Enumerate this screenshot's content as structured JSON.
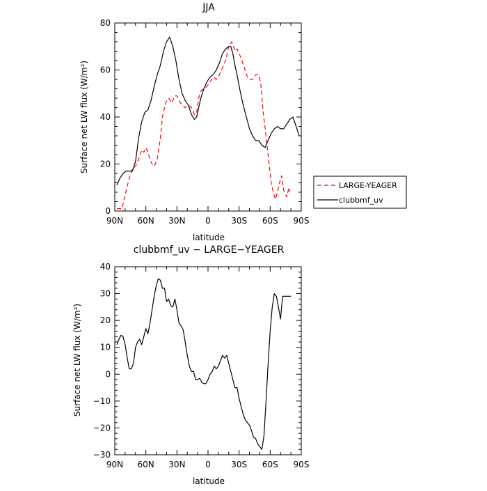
{
  "chart_data": [
    {
      "type": "line",
      "title": "JJA",
      "xlabel": "latitude",
      "ylabel": "Surface net LW flux (W/m²)",
      "xlim": [
        90,
        -90
      ],
      "ylim": [
        0,
        80
      ],
      "xticks": [
        90,
        60,
        30,
        0,
        -30,
        -60,
        -90
      ],
      "xticklabels": [
        "90N",
        "60N",
        "30N",
        "0",
        "30S",
        "60S",
        "90S"
      ],
      "yticks": [
        0,
        20,
        40,
        60,
        80
      ],
      "yticklabels": [
        "0",
        "20",
        "40",
        "60",
        "80"
      ],
      "legend": {
        "placement": "right-outside",
        "entries": [
          "LARGE-YEAGER",
          "clubbmf_uv"
        ]
      },
      "series": [
        {
          "name": "LARGE-YEAGER",
          "color": "#ff0000",
          "dash": "dashed",
          "x": [
            88,
            83,
            80,
            76,
            73,
            70,
            67,
            64,
            62,
            60,
            58,
            56,
            54,
            52,
            49,
            46,
            44,
            41,
            38,
            35,
            32,
            30,
            28,
            25,
            22,
            19,
            16,
            13,
            11,
            9,
            7,
            4,
            1,
            -2,
            -5,
            -8,
            -11,
            -14,
            -17,
            -20,
            -23,
            -26,
            -28,
            -30,
            -32,
            -35,
            -38,
            -40,
            -43,
            -46,
            -49,
            -51,
            -53,
            -56,
            -59,
            -61,
            -63,
            -65,
            -67,
            -69,
            -71,
            -73,
            -76,
            -78,
            -79
          ],
          "y": [
            1,
            1,
            7,
            14,
            18,
            19,
            22,
            26,
            25,
            27,
            25,
            22,
            20,
            19,
            22,
            31,
            40,
            46,
            48,
            46,
            49,
            49,
            47,
            45,
            44,
            45,
            44,
            41,
            42,
            48,
            51,
            52,
            53,
            55,
            57,
            56,
            58,
            61,
            64,
            70,
            72,
            68,
            69,
            67,
            65,
            61,
            57,
            56,
            56,
            58,
            58,
            54,
            43,
            32,
            20,
            12,
            8,
            5,
            8,
            12,
            15,
            9,
            6,
            10,
            8
          ]
        },
        {
          "name": "clubbmf_uv",
          "color": "#000000",
          "dash": "solid",
          "x": [
            88,
            85,
            82,
            79,
            76,
            73,
            70,
            67,
            64,
            61,
            58,
            55,
            52,
            49,
            46,
            43,
            40,
            37,
            34,
            31,
            28,
            25,
            22,
            19,
            16,
            13,
            11,
            9,
            7,
            4,
            1,
            -2,
            -5,
            -8,
            -11,
            -14,
            -17,
            -20,
            -22,
            -24,
            -26,
            -28,
            -31,
            -34,
            -37,
            -40,
            -43,
            -46,
            -49,
            -52,
            -55,
            -58,
            -61,
            -64,
            -67,
            -70,
            -73,
            -76,
            -79,
            -82,
            -85,
            -88
          ],
          "y": [
            11,
            14,
            16,
            17,
            17,
            17,
            21,
            31,
            38,
            42,
            43,
            47,
            53,
            58,
            62,
            68,
            72,
            74,
            70,
            64,
            56,
            50,
            47,
            45,
            41,
            39,
            40,
            44,
            48,
            52,
            55,
            57,
            58,
            60,
            63,
            67,
            69,
            70,
            70,
            67,
            62,
            58,
            51,
            45,
            40,
            35,
            32,
            30,
            30,
            28,
            27,
            30,
            33,
            35,
            36,
            35,
            35,
            37,
            39,
            40,
            36,
            32
          ]
        }
      ]
    },
    {
      "type": "line",
      "title": "clubbmf_uv − LARGE−YEAGER",
      "xlabel": "latitude",
      "ylabel": "Surface net LW flux (W/m²)",
      "xlim": [
        90,
        -90
      ],
      "ylim": [
        -30,
        40
      ],
      "xticks": [
        90,
        60,
        30,
        0,
        -30,
        -60,
        -90
      ],
      "xticklabels": [
        "90N",
        "60N",
        "30N",
        "0",
        "30S",
        "60S",
        "90S"
      ],
      "yticks": [
        -30,
        -20,
        -10,
        0,
        10,
        20,
        30,
        40
      ],
      "yticklabels": [
        "−30",
        "−20",
        "−10",
        "0",
        "10",
        "20",
        "30",
        "40"
      ],
      "series": [
        {
          "color": "#000000",
          "dash": "solid",
          "x": [
            88,
            86,
            84,
            82,
            80,
            78,
            76,
            74,
            72,
            70,
            68,
            66,
            64,
            62,
            60,
            58,
            56,
            54,
            52,
            50,
            48,
            46,
            44,
            42,
            40,
            38,
            36,
            34,
            32,
            30,
            28,
            26,
            24,
            22,
            20,
            18,
            16,
            14,
            12,
            10,
            8,
            6,
            4,
            2,
            0,
            -2,
            -4,
            -6,
            -8,
            -10,
            -12,
            -14,
            -16,
            -18,
            -20,
            -22,
            -24,
            -26,
            -28,
            -30,
            -32,
            -34,
            -36,
            -38,
            -40,
            -42,
            -44,
            -46,
            -48,
            -50,
            -52,
            -54,
            -56,
            -58,
            -60,
            -62,
            -64,
            -66,
            -68,
            -70,
            -72,
            -74,
            -76,
            -78,
            -80
          ],
          "y": [
            11,
            13,
            14.5,
            14,
            11,
            6,
            2,
            2,
            4,
            10,
            12,
            13,
            11,
            14,
            17,
            15,
            19,
            24,
            29,
            33,
            35.5,
            35,
            32,
            32,
            27,
            28,
            25.5,
            25,
            28,
            24,
            19,
            18,
            16.5,
            12,
            7,
            3,
            1,
            1,
            -2,
            -2,
            -1.5,
            -3,
            -3.5,
            -3.5,
            -2,
            0,
            1,
            3,
            2,
            3,
            5,
            7,
            6,
            7,
            4,
            1,
            -2,
            -5,
            -5,
            -9,
            -12,
            -15,
            -17,
            -18,
            -19,
            -21,
            -23.5,
            -24,
            -26,
            -27,
            -28,
            -23,
            -10,
            4,
            16,
            25,
            30,
            29,
            25,
            20.5,
            29,
            29,
            29,
            29,
            29
          ]
        }
      ]
    }
  ]
}
